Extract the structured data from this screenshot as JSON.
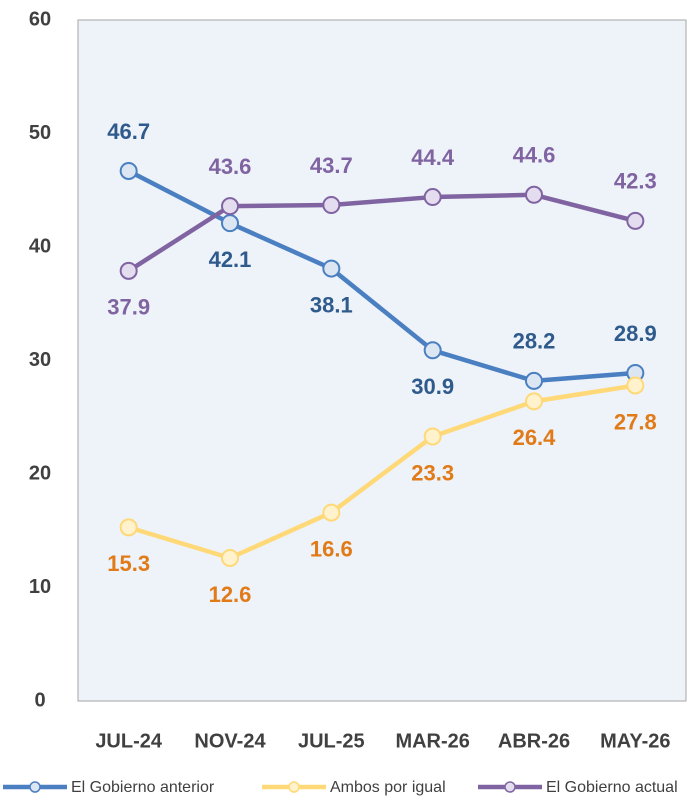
{
  "chart_data": {
    "type": "line",
    "categories": [
      "JUL-24",
      "NOV-24",
      "JUL-25",
      "MAR-26",
      "ABR-26",
      "MAY-26"
    ],
    "series": [
      {
        "name": "El Gobierno anterior",
        "color": "#4a7fc1",
        "label_color": "#2e5a8c",
        "values": [
          46.7,
          42.1,
          38.1,
          30.9,
          28.2,
          28.9
        ]
      },
      {
        "name": "Ambos por igual",
        "color": "#ffd978",
        "label_color": "#e07b18",
        "values": [
          15.3,
          12.6,
          16.6,
          23.3,
          26.4,
          27.8
        ]
      },
      {
        "name": "El Gobierno actual",
        "color": "#8064a2",
        "label_color": "#8064a2",
        "values": [
          37.9,
          43.6,
          43.7,
          44.4,
          44.6,
          42.3
        ]
      }
    ],
    "ylim": [
      0,
      60
    ],
    "yticks": [
      0,
      10,
      20,
      30,
      40,
      50,
      60
    ],
    "grid": false,
    "legend": "bottom"
  }
}
